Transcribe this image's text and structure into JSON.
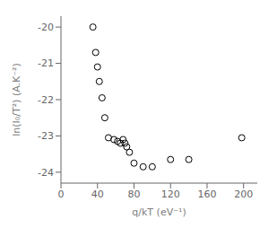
{
  "chart_data": {
    "type": "scatter",
    "x": [
      35,
      38,
      40,
      42,
      45,
      48,
      52,
      58,
      62,
      65,
      68,
      70,
      72,
      75,
      80,
      90,
      100,
      120,
      140,
      198
    ],
    "y": [
      -20.0,
      -20.7,
      -21.1,
      -21.5,
      -21.95,
      -22.5,
      -23.05,
      -23.1,
      -23.15,
      -23.2,
      -23.1,
      -23.2,
      -23.3,
      -23.45,
      -23.75,
      -23.85,
      -23.85,
      -23.65,
      -23.65,
      -23.05
    ],
    "xlabel": "q/kT  (eV⁻¹)",
    "ylabel": "ln(I₀/T²) (A.K⁻²)",
    "xlim": [
      0,
      215
    ],
    "ylim": [
      -24.3,
      -19.7
    ],
    "xticks": [
      0,
      40,
      80,
      120,
      160,
      200
    ],
    "yticks": [
      -24,
      -23,
      -22,
      -21,
      -20
    ],
    "color": "#000000",
    "marker": "circle",
    "grid": false
  }
}
